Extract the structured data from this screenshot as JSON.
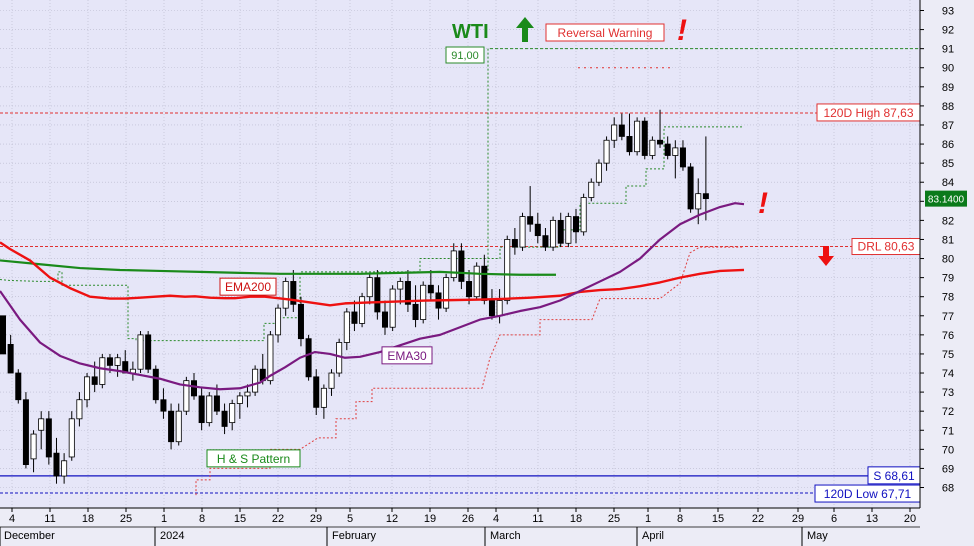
{
  "chart_data": {
    "type": "candlestick",
    "title": "WTI",
    "ylim": [
      67,
      93
    ],
    "y_ticks": [
      68,
      69,
      70,
      71,
      72,
      73,
      74,
      75,
      76,
      77,
      78,
      79,
      80,
      81,
      82,
      83,
      84,
      85,
      86,
      87,
      88,
      89,
      90,
      91,
      92,
      93
    ],
    "last_price": "83.1400",
    "x_day_labels": [
      "4",
      "11",
      "18",
      "25",
      "1",
      "8",
      "15",
      "22",
      "29",
      "5",
      "12",
      "19",
      "26",
      "4",
      "11",
      "18",
      "25",
      "1",
      "8",
      "15",
      "22",
      "29",
      "6",
      "13",
      "20"
    ],
    "x_month_labels": [
      "December",
      "2024",
      "February",
      "March",
      "April",
      "May"
    ],
    "candles": [
      [
        77,
        77,
        75,
        75
      ],
      [
        75.5,
        76,
        74,
        74
      ],
      [
        74,
        74.2,
        72.4,
        72.6
      ],
      [
        72.6,
        73,
        69,
        69.2
      ],
      [
        69.5,
        71,
        68.8,
        70.8
      ],
      [
        71,
        72,
        70,
        71.6
      ],
      [
        71.6,
        72,
        69.2,
        69.6
      ],
      [
        69.8,
        70.6,
        68.2,
        68.6
      ],
      [
        68.6,
        69.8,
        68.2,
        69.4
      ],
      [
        69.6,
        72,
        69.4,
        71.6
      ],
      [
        71.6,
        73,
        71.2,
        72.6
      ],
      [
        72.6,
        74,
        72.2,
        73.8
      ],
      [
        73.8,
        74.6,
        73,
        73.4
      ],
      [
        73.4,
        75,
        73.2,
        74.8
      ],
      [
        74.8,
        75,
        74,
        74.4
      ],
      [
        74.4,
        75,
        73.8,
        74.8
      ],
      [
        74.6,
        75.2,
        74,
        74
      ],
      [
        74,
        74.6,
        73.6,
        74.2
      ],
      [
        74.2,
        76.2,
        74,
        76
      ],
      [
        76,
        76.2,
        74,
        74.2
      ],
      [
        74.2,
        74.4,
        72.4,
        72.6
      ],
      [
        72.6,
        73.2,
        71.6,
        72
      ],
      [
        72,
        72.4,
        70,
        70.4
      ],
      [
        70.4,
        72.4,
        70.2,
        72
      ],
      [
        72,
        73.8,
        71.8,
        73.6
      ],
      [
        73.6,
        74,
        72.6,
        72.8
      ],
      [
        72.8,
        73.2,
        71,
        71.4
      ],
      [
        71.4,
        73,
        71.2,
        72.8
      ],
      [
        72.8,
        73.4,
        71.8,
        72
      ],
      [
        72,
        72.4,
        70.8,
        71.2
      ],
      [
        71.4,
        72.6,
        71,
        72.4
      ],
      [
        72.4,
        73,
        71.6,
        72.8
      ],
      [
        72.8,
        73.4,
        72.2,
        73
      ],
      [
        73,
        74.4,
        72.8,
        74.2
      ],
      [
        74.2,
        75,
        73.4,
        73.6
      ],
      [
        73.6,
        76.2,
        73.4,
        76
      ],
      [
        76,
        77.6,
        75.6,
        77.4
      ],
      [
        77.4,
        79,
        77,
        78.8
      ],
      [
        78.8,
        79.4,
        77.2,
        77.6
      ],
      [
        77.6,
        78,
        75.4,
        75.8
      ],
      [
        75.8,
        76,
        73.6,
        73.8
      ],
      [
        73.8,
        74.2,
        71.8,
        72.2
      ],
      [
        72.2,
        73.4,
        71.6,
        73.2
      ],
      [
        73.2,
        74.2,
        72.8,
        74
      ],
      [
        74,
        75.8,
        73.8,
        75.6
      ],
      [
        75.6,
        77.4,
        75.2,
        77.2
      ],
      [
        77.2,
        77.8,
        76.2,
        76.6
      ],
      [
        76.6,
        78.2,
        76.4,
        78
      ],
      [
        78,
        79.2,
        77.6,
        79
      ],
      [
        79,
        79.4,
        76.8,
        77.2
      ],
      [
        77.2,
        77.8,
        76,
        76.4
      ],
      [
        76.4,
        78.6,
        76.2,
        78.4
      ],
      [
        78.4,
        79,
        77.6,
        78.8
      ],
      [
        78.8,
        79.4,
        77.2,
        77.6
      ],
      [
        77.6,
        78.6,
        76.4,
        76.8
      ],
      [
        76.8,
        78.8,
        76.6,
        78.6
      ],
      [
        78.6,
        79.4,
        77.8,
        78.2
      ],
      [
        78.2,
        78.6,
        76.8,
        77.4
      ],
      [
        77.4,
        79.2,
        77.2,
        79
      ],
      [
        79,
        80.8,
        78.8,
        80.4
      ],
      [
        80.4,
        80.8,
        78.4,
        78.8
      ],
      [
        78.8,
        79.4,
        77.6,
        78
      ],
      [
        78,
        79.8,
        77.8,
        79.6
      ],
      [
        79.6,
        80.2,
        77.6,
        77.8
      ],
      [
        77.8,
        78.4,
        76.8,
        77
      ],
      [
        77,
        78.4,
        76.6,
        77.8
      ],
      [
        77.8,
        81.2,
        77.6,
        81
      ],
      [
        81,
        81.6,
        80.2,
        80.6
      ],
      [
        80.6,
        82.4,
        80.4,
        82.2
      ],
      [
        82.2,
        83.8,
        81.4,
        81.8
      ],
      [
        81.8,
        82.4,
        80.8,
        81.2
      ],
      [
        81.2,
        81.6,
        80.4,
        80.6
      ],
      [
        80.6,
        82.2,
        80.4,
        82
      ],
      [
        82,
        82.4,
        80.6,
        80.8
      ],
      [
        80.8,
        82.4,
        80.6,
        82.2
      ],
      [
        82.2,
        82.6,
        80.8,
        81.4
      ],
      [
        81.4,
        83.4,
        81.2,
        83.2
      ],
      [
        83.2,
        84.2,
        83,
        84
      ],
      [
        84,
        85.2,
        83.8,
        85
      ],
      [
        85,
        86.4,
        84.6,
        86.2
      ],
      [
        86.2,
        87.4,
        85.8,
        87
      ],
      [
        87,
        87.6,
        86.2,
        86.4
      ],
      [
        86.4,
        87.6,
        85.4,
        85.6
      ],
      [
        85.6,
        87.4,
        85.4,
        87.2
      ],
      [
        87.2,
        87.4,
        85.2,
        85.4
      ],
      [
        85.4,
        86.4,
        85.2,
        86.2
      ],
      [
        86.2,
        87.8,
        85.8,
        86
      ],
      [
        86,
        86.4,
        85.2,
        85.4
      ],
      [
        85.4,
        86.2,
        84.2,
        85.8
      ],
      [
        85.8,
        86.2,
        84.6,
        84.8
      ],
      [
        84.8,
        85,
        82.4,
        82.6
      ],
      [
        82.6,
        84.2,
        81.8,
        83.4
      ],
      [
        83.4,
        86.4,
        82,
        83.14
      ]
    ],
    "ema200": [
      [
        0,
        80.85
      ],
      [
        10,
        80.5
      ],
      [
        30,
        79.9
      ],
      [
        50,
        79.0
      ],
      [
        70,
        78.45
      ],
      [
        90,
        78.0
      ],
      [
        110,
        77.9
      ],
      [
        125,
        77.9
      ],
      [
        140,
        77.95
      ],
      [
        155,
        78.0
      ],
      [
        170,
        78.05
      ],
      [
        185,
        78.0
      ],
      [
        195,
        78.02
      ],
      [
        210,
        77.95
      ],
      [
        225,
        77.92
      ],
      [
        235,
        77.92
      ],
      [
        250,
        78.0
      ],
      [
        265,
        78.0
      ],
      [
        290,
        77.85
      ],
      [
        310,
        77.7
      ],
      [
        330,
        77.55
      ],
      [
        345,
        77.65
      ],
      [
        370,
        77.7
      ],
      [
        400,
        77.75
      ],
      [
        425,
        77.8
      ],
      [
        450,
        77.82
      ],
      [
        480,
        77.85
      ],
      [
        510,
        77.9
      ],
      [
        530,
        77.95
      ],
      [
        560,
        78.05
      ],
      [
        580,
        78.25
      ],
      [
        600,
        78.35
      ],
      [
        620,
        78.4
      ],
      [
        640,
        78.55
      ],
      [
        660,
        78.75
      ],
      [
        680,
        79.0
      ],
      [
        700,
        79.2
      ],
      [
        720,
        79.35
      ],
      [
        744,
        79.4
      ]
    ],
    "ema30": [
      [
        0,
        78.3
      ],
      [
        20,
        76.8
      ],
      [
        40,
        75.6
      ],
      [
        60,
        74.9
      ],
      [
        80,
        74.5
      ],
      [
        100,
        74.25
      ],
      [
        120,
        74.1
      ],
      [
        140,
        73.9
      ],
      [
        160,
        73.7
      ],
      [
        180,
        73.4
      ],
      [
        200,
        73.25
      ],
      [
        220,
        73.15
      ],
      [
        240,
        73.2
      ],
      [
        260,
        73.5
      ],
      [
        270,
        73.85
      ],
      [
        285,
        74.3
      ],
      [
        300,
        74.8
      ],
      [
        315,
        75.1
      ],
      [
        330,
        75.0
      ],
      [
        345,
        74.8
      ],
      [
        360,
        74.85
      ],
      [
        380,
        75.1
      ],
      [
        400,
        75.45
      ],
      [
        420,
        75.8
      ],
      [
        440,
        76.0
      ],
      [
        460,
        76.4
      ],
      [
        480,
        76.8
      ],
      [
        500,
        77.0
      ],
      [
        520,
        77.25
      ],
      [
        540,
        77.45
      ],
      [
        560,
        77.8
      ],
      [
        580,
        78.3
      ],
      [
        600,
        78.8
      ],
      [
        620,
        79.3
      ],
      [
        640,
        80.0
      ],
      [
        660,
        81.0
      ],
      [
        680,
        81.8
      ],
      [
        700,
        82.3
      ],
      [
        720,
        82.7
      ],
      [
        735,
        82.9
      ],
      [
        744,
        82.85
      ]
    ],
    "green_ma": [
      [
        0,
        79.9
      ],
      [
        40,
        79.7
      ],
      [
        80,
        79.5
      ],
      [
        120,
        79.4
      ],
      [
        160,
        79.35
      ],
      [
        200,
        79.3
      ],
      [
        240,
        79.25
      ],
      [
        280,
        79.2
      ],
      [
        320,
        79.2
      ],
      [
        360,
        79.2
      ],
      [
        400,
        79.25
      ],
      [
        440,
        79.3
      ],
      [
        480,
        79.2
      ],
      [
        520,
        79.15
      ],
      [
        556,
        79.15
      ]
    ],
    "annotations": {
      "wti_label": "WTI",
      "reversal_warning": "Reversal Warning",
      "exclaim": "!",
      "target_label": "91,00",
      "high_label": "120D High 87,63",
      "drl_label": "DRL 80,63",
      "s_label": "S 68,61",
      "low_label": "120D Low 67,71",
      "ema200_label": "EMA200",
      "ema30_label": "EMA30",
      "hs_label": "H & S Pattern"
    },
    "levels": {
      "target": 91.0,
      "high": 87.63,
      "drl": 80.63,
      "support": 68.61,
      "low": 67.71
    },
    "colors": {
      "background": "#e6e6f8",
      "ema200": "#ee1111",
      "ema30": "#7a1a80",
      "green_ma": "#1a8a1a",
      "support": "#1010c0",
      "resistance": "#e03030",
      "wti": "#1a8a1a",
      "arrow_up": "#1a8a1a",
      "arrow_down": "#ee1111"
    }
  }
}
